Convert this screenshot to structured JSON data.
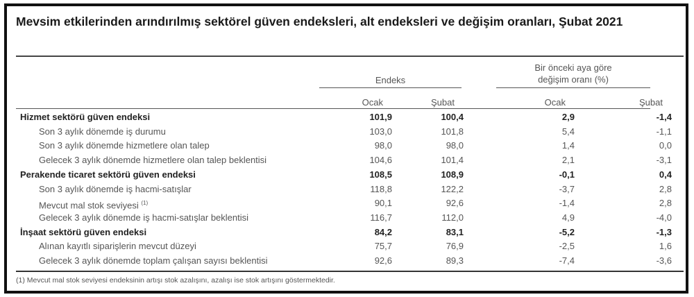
{
  "title": "Mevsim etkilerinden arındırılmış sektörel güven endeksleri, alt endeksleri ve değişim oranları, Şubat 2021",
  "headers": {
    "group1": "Endeks",
    "group2_line1": "Bir önceki aya göre",
    "group2_line2": "değişim oranı (%)",
    "col1": "Ocak",
    "col2": "Şubat",
    "col3": "Ocak",
    "col4": "Şubat"
  },
  "rows": [
    {
      "label": "Hizmet sektörü güven endeksi",
      "bold": true,
      "values": [
        "101,9",
        "100,4",
        "2,9",
        "-1,4"
      ]
    },
    {
      "label": "Son 3 aylık dönemde iş durumu",
      "values": [
        "103,0",
        "101,8",
        "5,4",
        "-1,1"
      ]
    },
    {
      "label": "Son 3 aylık dönemde hizmetlere olan talep",
      "values": [
        "98,0",
        "98,0",
        "1,4",
        "0,0"
      ]
    },
    {
      "label": "Gelecek 3 aylık dönemde hizmetlere olan talep beklentisi",
      "values": [
        "104,6",
        "101,4",
        "2,1",
        "-3,1"
      ]
    },
    {
      "label": "Perakende ticaret sektörü güven endeksi",
      "bold": true,
      "values": [
        "108,5",
        "108,9",
        "-0,1",
        "0,4"
      ]
    },
    {
      "label": "Son 3 aylık dönemde iş hacmi-satışlar",
      "values": [
        "118,8",
        "122,2",
        "-3,7",
        "2,8"
      ]
    },
    {
      "label": "Mevcut mal stok seviyesi",
      "note": "(1)",
      "values": [
        "90,1",
        "92,6",
        "-1,4",
        "2,8"
      ]
    },
    {
      "label": "Gelecek 3 aylık dönemde iş hacmi-satışlar beklentisi",
      "values": [
        "116,7",
        "112,0",
        "4,9",
        "-4,0"
      ]
    },
    {
      "label": "İnşaat sektörü güven endeksi",
      "bold": true,
      "values": [
        "84,2",
        "83,1",
        "-5,2",
        "-1,3"
      ]
    },
    {
      "label": "Alınan kayıtlı siparişlerin mevcut düzeyi",
      "values": [
        "75,7",
        "76,9",
        "-2,5",
        "1,6"
      ]
    },
    {
      "label": "Gelecek 3 aylık dönemde toplam çalışan sayısı beklentisi",
      "values": [
        "92,6",
        "89,3",
        "-7,4",
        "-3,6"
      ]
    }
  ],
  "footnote": "(1) Mevcut mal stok seviyesi endeksinin artışı stok azalışını, azalışı ise stok artışını göstermektedir."
}
